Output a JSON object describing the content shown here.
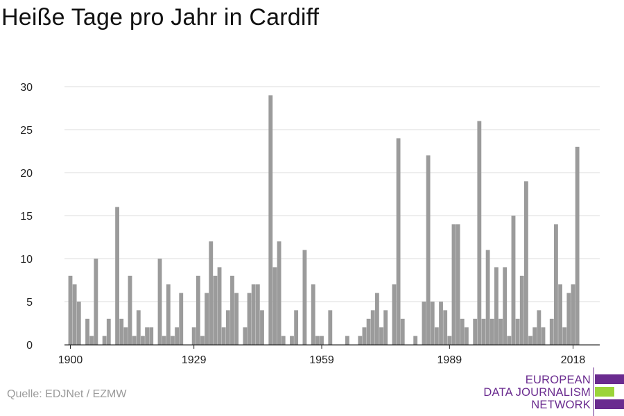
{
  "title": "Heiße Tage pro Jahr in Cardiff",
  "source": "Quelle: EDJNet / EZMW",
  "logo": {
    "line1": "EUROPEAN",
    "line2": "DATA JOURNALISM",
    "line3": "NETWORK",
    "colors": {
      "purple": "#6a2b8f",
      "green": "#9bd43a"
    }
  },
  "colors": {
    "bar": "#9b9b9b",
    "grid": "#dddddd",
    "axis": "#222222"
  },
  "chart_data": {
    "type": "bar",
    "title": "Heiße Tage pro Jahr in Cardiff",
    "xlabel": "",
    "ylabel": "",
    "x_start": 1900,
    "x_end": 2018,
    "ylim": [
      0,
      30
    ],
    "y_ticks": [
      0,
      5,
      10,
      15,
      20,
      25,
      30
    ],
    "x_ticks": [
      1900,
      1929,
      1959,
      1989,
      2018
    ],
    "grid": true,
    "values": [
      8,
      7,
      5,
      0,
      3,
      1,
      10,
      0,
      1,
      3,
      0,
      16,
      3,
      2,
      8,
      1,
      4,
      1,
      2,
      2,
      0,
      10,
      1,
      7,
      1,
      2,
      6,
      0,
      0,
      2,
      8,
      1,
      6,
      12,
      8,
      9,
      2,
      4,
      8,
      6,
      0,
      2,
      6,
      7,
      7,
      4,
      0,
      29,
      9,
      12,
      1,
      0,
      1,
      4,
      0,
      11,
      0,
      7,
      1,
      1,
      0,
      4,
      0,
      0,
      0,
      1,
      0,
      0,
      1,
      2,
      3,
      4,
      6,
      2,
      4,
      0,
      7,
      24,
      3,
      0,
      0,
      1,
      0,
      5,
      22,
      5,
      2,
      5,
      4,
      1,
      14,
      14,
      3,
      2,
      0,
      3,
      26,
      3,
      11,
      3,
      9,
      3,
      9,
      1,
      15,
      3,
      8,
      19,
      1,
      2,
      4,
      2,
      0,
      3,
      14,
      7,
      2,
      6,
      7,
      23
    ]
  }
}
